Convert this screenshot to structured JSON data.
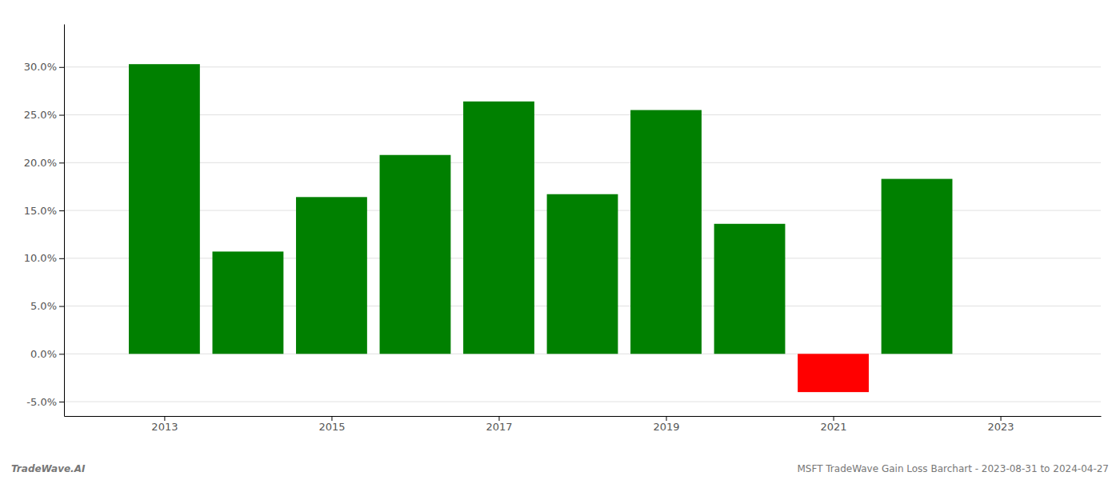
{
  "chart_data": {
    "type": "bar",
    "x": [
      2013,
      2014,
      2015,
      2016,
      2017,
      2018,
      2019,
      2020,
      2021,
      2022
    ],
    "values": [
      0.303,
      0.107,
      0.164,
      0.208,
      0.264,
      0.167,
      0.255,
      0.136,
      -0.04,
      0.183
    ],
    "colors": [
      "#008000",
      "#008000",
      "#008000",
      "#008000",
      "#008000",
      "#008000",
      "#008000",
      "#008000",
      "#ff0000",
      "#008000"
    ],
    "xlim": [
      2011.8,
      2024.2
    ],
    "xticks": [
      2013,
      2015,
      2017,
      2019,
      2021,
      2023
    ],
    "ylim": [
      -0.065,
      0.345
    ],
    "yticks": [
      {
        "value": -0.05,
        "label": "-5.0%"
      },
      {
        "value": 0.0,
        "label": "0.0%"
      },
      {
        "value": 0.05,
        "label": "5.0%"
      },
      {
        "value": 0.1,
        "label": "10.0%"
      },
      {
        "value": 0.15,
        "label": "15.0%"
      },
      {
        "value": 0.2,
        "label": "20.0%"
      },
      {
        "value": 0.25,
        "label": "25.0%"
      },
      {
        "value": 0.3,
        "label": "30.0%"
      }
    ],
    "grid": true,
    "annotations": [
      "TradeWave.AI",
      "MSFT TradeWave Gain Loss Barchart - 2023-08-31 to 2024-04-27"
    ]
  }
}
